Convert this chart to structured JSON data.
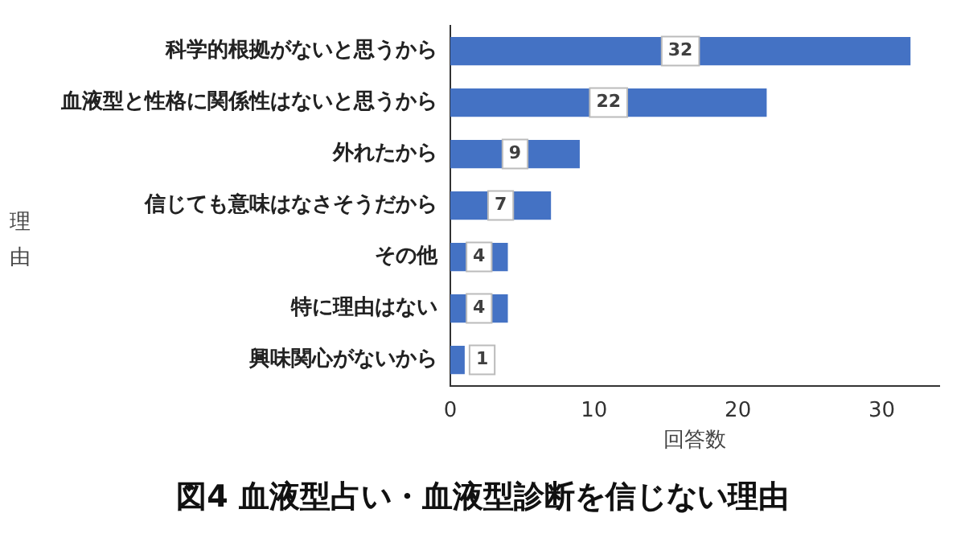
{
  "chart_data": {
    "type": "bar",
    "orientation": "horizontal",
    "title": "図4 血液型占い・血液型診断を信じない理由",
    "xlabel": "回答数",
    "ylabel": "理由",
    "categories": [
      "科学的根拠がないと思うから",
      "血液型と性格に関係性はないと思うから",
      "外れたから",
      "信じても意味はなさそうだから",
      "その他",
      "特に理由はない",
      "興味関心がないから"
    ],
    "values": [
      32,
      22,
      9,
      7,
      4,
      4,
      1
    ],
    "color": "#4472c4",
    "xlim": [
      0,
      34
    ],
    "xticks": [
      0,
      10,
      20,
      30
    ],
    "grid": false,
    "data_labels": true
  }
}
